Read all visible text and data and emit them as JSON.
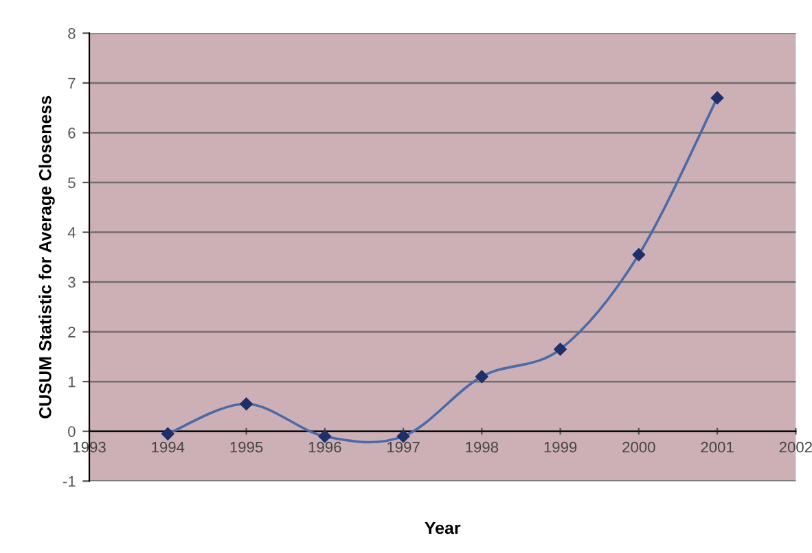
{
  "chart_data": {
    "type": "line",
    "xlabel": "Year",
    "ylabel": "CUSUM Statistic for Average Closeness",
    "x": [
      1994,
      1995,
      1996,
      1997,
      1998,
      1999,
      2000,
      2001
    ],
    "series": [
      {
        "color": "#4a6aa8",
        "values": [
          -0.05,
          0.55,
          -0.1,
          -0.1,
          1.1,
          1.65,
          3.55,
          6.7
        ]
      }
    ],
    "xlim": [
      1993,
      2002
    ],
    "xticks": [
      1993,
      1994,
      1995,
      1996,
      1997,
      1998,
      1999,
      2000,
      2001,
      2002
    ],
    "ylim": [
      -1,
      8
    ],
    "yticks": [
      -1,
      0,
      1,
      2,
      3,
      4,
      5,
      6,
      7,
      8
    ],
    "grid": "y",
    "marker": "diamond",
    "line_style": "solid"
  }
}
